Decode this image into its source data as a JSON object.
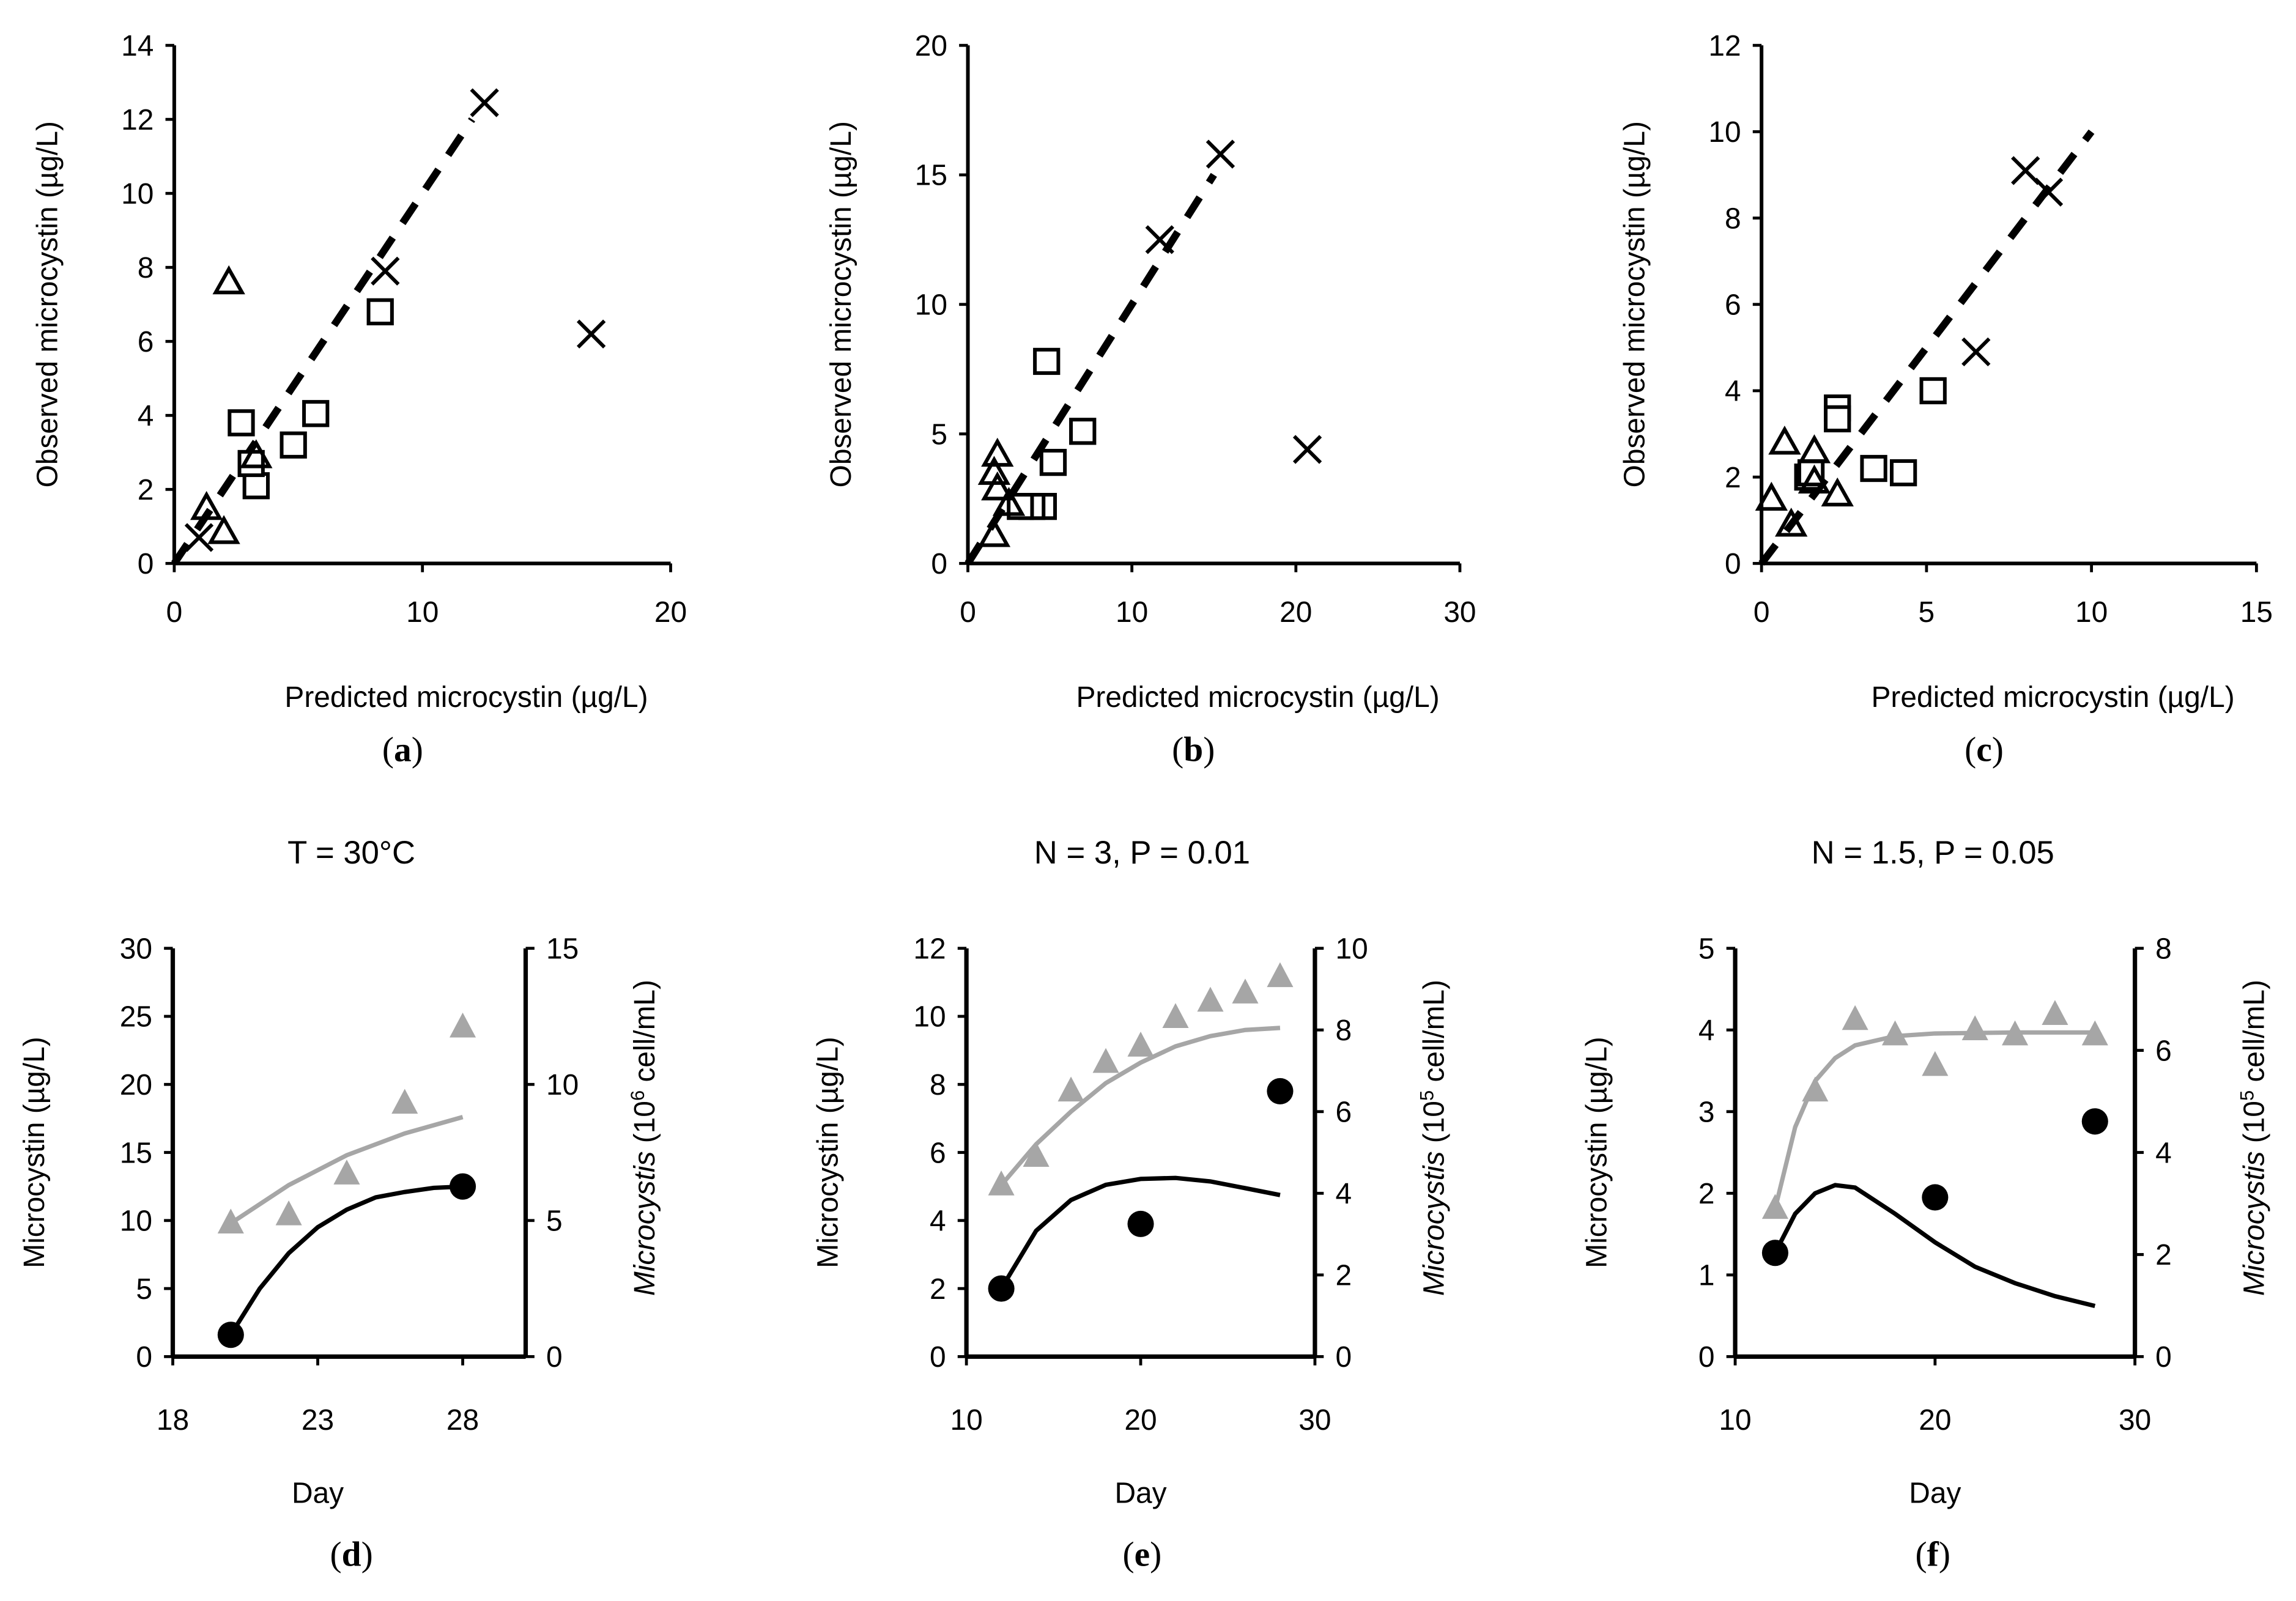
{
  "chart_data": [
    {
      "id": "a",
      "type": "scatter",
      "panel_label": "a",
      "title": "",
      "xlabel": "Predicted microcystin (µg/L)",
      "ylabel": "Observed microcystin (µg/L)",
      "xlim": [
        0,
        20
      ],
      "ylim": [
        0,
        14
      ],
      "xticks": [
        0,
        10,
        20
      ],
      "yticks": [
        0,
        2,
        4,
        6,
        8,
        10,
        12,
        14
      ],
      "series": [
        {
          "name": "squares",
          "marker": "square",
          "points": [
            [
              2.7,
              3.8
            ],
            [
              3.3,
              2.1
            ],
            [
              3.1,
              2.7
            ],
            [
              4.8,
              3.2
            ],
            [
              5.7,
              4.05
            ],
            [
              8.3,
              6.8
            ]
          ]
        },
        {
          "name": "triangles",
          "marker": "triangle",
          "points": [
            [
              2.2,
              7.6
            ],
            [
              1.3,
              1.5
            ],
            [
              2.0,
              0.85
            ],
            [
              3.3,
              2.9
            ]
          ]
        },
        {
          "name": "crosses",
          "marker": "cross",
          "points": [
            [
              1.0,
              0.7
            ],
            [
              8.5,
              7.9
            ],
            [
              12.5,
              12.45
            ],
            [
              16.8,
              6.2
            ]
          ]
        }
      ],
      "line_1to1": [
        [
          0,
          0
        ],
        [
          12,
          12
        ]
      ]
    },
    {
      "id": "b",
      "type": "scatter",
      "panel_label": "b",
      "title": "",
      "xlabel": "Predicted microcystin (µg/L)",
      "ylabel": "Observed microcystin (µg/L)",
      "xlim": [
        0,
        30
      ],
      "ylim": [
        0,
        20
      ],
      "xticks": [
        0,
        10,
        20,
        30
      ],
      "yticks": [
        0,
        5,
        10,
        15,
        20
      ],
      "series": [
        {
          "name": "squares",
          "marker": "square",
          "points": [
            [
              4.8,
              7.8
            ],
            [
              5.2,
              3.9
            ],
            [
              7.0,
              5.1
            ],
            [
              4.6,
              2.2
            ],
            [
              3.9,
              2.2
            ],
            [
              3.2,
              2.2
            ]
          ]
        },
        {
          "name": "triangles",
          "marker": "triangle",
          "points": [
            [
              1.8,
              4.2
            ],
            [
              1.6,
              3.5
            ],
            [
              1.8,
              2.9
            ],
            [
              1.6,
              1.1
            ],
            [
              2.5,
              2.3
            ]
          ]
        },
        {
          "name": "crosses",
          "marker": "cross",
          "points": [
            [
              11.7,
              12.5
            ],
            [
              15.4,
              15.8
            ],
            [
              20.7,
              4.4
            ]
          ]
        }
      ],
      "line_1to1": [
        [
          0,
          0
        ],
        [
          15,
          15
        ]
      ]
    },
    {
      "id": "c",
      "type": "scatter",
      "panel_label": "c",
      "title": "",
      "xlabel": "Predicted microcystin (µg/L)",
      "ylabel": "Observed microcystin (µg/L)",
      "xlim": [
        0,
        15
      ],
      "ylim": [
        0,
        12
      ],
      "xticks": [
        0,
        5,
        10,
        15
      ],
      "yticks": [
        0,
        2,
        4,
        6,
        8,
        10,
        12
      ],
      "series": [
        {
          "name": "squares",
          "marker": "square",
          "points": [
            [
              2.3,
              3.6
            ],
            [
              2.3,
              3.35
            ],
            [
              1.4,
              2.0
            ],
            [
              1.5,
              2.1
            ],
            [
              3.4,
              2.2
            ],
            [
              4.3,
              2.1
            ],
            [
              5.2,
              4.0
            ]
          ]
        },
        {
          "name": "triangles",
          "marker": "triangle",
          "points": [
            [
              0.3,
              1.5
            ],
            [
              0.7,
              2.8
            ],
            [
              0.9,
              0.9
            ],
            [
              1.6,
              2.6
            ],
            [
              1.6,
              1.9
            ],
            [
              2.3,
              1.6
            ]
          ]
        },
        {
          "name": "crosses",
          "marker": "cross",
          "points": [
            [
              8.0,
              9.1
            ],
            [
              8.7,
              8.6
            ],
            [
              6.5,
              4.9
            ]
          ]
        }
      ],
      "line_1to1": [
        [
          0,
          0
        ],
        [
          10,
          10
        ]
      ]
    },
    {
      "id": "d",
      "type": "line",
      "panel_label": "d",
      "title": "T = 30°C",
      "xlabel": "Day",
      "ylabel": "Microcystin (µg/L)",
      "y2label_italic": "Microcystis",
      "y2label_unit_pre": " (10",
      "y2label_exp": "6",
      "y2label_unit_post": " cell/mL)",
      "xlim": [
        18,
        28
      ],
      "ylim": [
        0,
        30
      ],
      "y2lim": [
        0,
        15
      ],
      "xticks": [
        18,
        23,
        28
      ],
      "yticks": [
        0,
        5,
        10,
        15,
        20,
        25,
        30
      ],
      "y2ticks": [
        0,
        5,
        10,
        15
      ],
      "cells_obs": [
        [
          20,
          4.9
        ],
        [
          22,
          5.2
        ],
        [
          24,
          6.7
        ],
        [
          26,
          9.3
        ],
        [
          28,
          12.1
        ]
      ],
      "cells_model": [
        [
          20,
          4.9
        ],
        [
          22,
          6.3
        ],
        [
          24,
          7.4
        ],
        [
          26,
          8.2
        ],
        [
          28,
          8.8
        ]
      ],
      "mc_obs": [
        [
          20,
          1.6
        ],
        [
          28,
          12.5
        ]
      ],
      "mc_model": [
        [
          20,
          1.6
        ],
        [
          21,
          5.0
        ],
        [
          22,
          7.6
        ],
        [
          23,
          9.5
        ],
        [
          24,
          10.8
        ],
        [
          25,
          11.7
        ],
        [
          26,
          12.1
        ],
        [
          27,
          12.4
        ],
        [
          28,
          12.5
        ]
      ]
    },
    {
      "id": "e",
      "type": "line",
      "panel_label": "e",
      "title": "N = 3, P = 0.01",
      "xlabel": "Day",
      "ylabel": "Microcystin (µg/L)",
      "y2label_italic": "Microcystis",
      "y2label_unit_pre": " (10",
      "y2label_exp": "5",
      "y2label_unit_post": " cell/mL)",
      "xlim": [
        10,
        30
      ],
      "ylim": [
        0,
        12
      ],
      "y2lim": [
        0,
        10
      ],
      "xticks": [
        10,
        20,
        30
      ],
      "yticks": [
        0,
        2,
        4,
        6,
        8,
        10,
        12
      ],
      "y2ticks": [
        0,
        2,
        4,
        6,
        8,
        10
      ],
      "cells_obs": [
        [
          12,
          4.2
        ],
        [
          14,
          4.9
        ],
        [
          16,
          6.5
        ],
        [
          18,
          7.2
        ],
        [
          20,
          7.6
        ],
        [
          22,
          8.3
        ],
        [
          24,
          8.7
        ],
        [
          26,
          8.9
        ],
        [
          28,
          9.3
        ]
      ],
      "cells_model": [
        [
          12,
          4.2
        ],
        [
          14,
          5.2
        ],
        [
          16,
          6.0
        ],
        [
          18,
          6.7
        ],
        [
          20,
          7.2
        ],
        [
          22,
          7.6
        ],
        [
          24,
          7.85
        ],
        [
          26,
          8.0
        ],
        [
          28,
          8.05
        ]
      ],
      "mc_obs": [
        [
          12,
          2.0
        ],
        [
          20,
          3.9
        ],
        [
          28,
          7.8
        ]
      ],
      "mc_model": [
        [
          12,
          2.0
        ],
        [
          14,
          3.7
        ],
        [
          16,
          4.6
        ],
        [
          18,
          5.05
        ],
        [
          20,
          5.22
        ],
        [
          22,
          5.25
        ],
        [
          24,
          5.15
        ],
        [
          26,
          4.95
        ],
        [
          28,
          4.75
        ]
      ]
    },
    {
      "id": "f",
      "type": "line",
      "panel_label": "f",
      "title": "N = 1.5, P = 0.05",
      "xlabel": "Day",
      "ylabel": "Microcystin (µg/L)",
      "y2label_italic": "Microcystis",
      "y2label_unit_pre": " (10",
      "y2label_exp": "5",
      "y2label_unit_post": " cell/mL)",
      "xlim": [
        10,
        30
      ],
      "ylim": [
        0,
        5
      ],
      "y2lim": [
        0,
        8
      ],
      "xticks": [
        10,
        20,
        30
      ],
      "yticks": [
        0,
        1,
        2,
        3,
        4,
        5
      ],
      "y2ticks": [
        0,
        2,
        4,
        6,
        8
      ],
      "cells_obs": [
        [
          12,
          2.9
        ],
        [
          14,
          5.2
        ],
        [
          16,
          6.6
        ],
        [
          18,
          6.3
        ],
        [
          20,
          5.7
        ],
        [
          22,
          6.4
        ],
        [
          24,
          6.3
        ],
        [
          26,
          6.7
        ],
        [
          28,
          6.3
        ]
      ],
      "cells_model": [
        [
          12,
          2.9
        ],
        [
          13,
          4.5
        ],
        [
          14,
          5.4
        ],
        [
          15,
          5.85
        ],
        [
          16,
          6.1
        ],
        [
          18,
          6.28
        ],
        [
          20,
          6.33
        ],
        [
          24,
          6.35
        ],
        [
          28,
          6.35
        ]
      ],
      "mc_obs": [
        [
          12,
          1.27
        ],
        [
          20,
          1.95
        ],
        [
          28,
          2.88
        ]
      ],
      "mc_model": [
        [
          12,
          1.27
        ],
        [
          13,
          1.75
        ],
        [
          14,
          2.0
        ],
        [
          15,
          2.1
        ],
        [
          16,
          2.07
        ],
        [
          18,
          1.75
        ],
        [
          20,
          1.4
        ],
        [
          22,
          1.1
        ],
        [
          24,
          0.9
        ],
        [
          26,
          0.74
        ],
        [
          28,
          0.62
        ]
      ]
    }
  ]
}
